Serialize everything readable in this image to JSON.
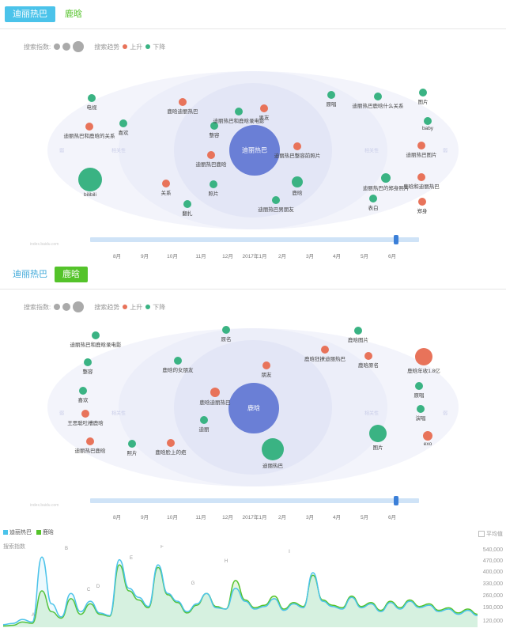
{
  "section1": {
    "tabs": [
      {
        "label": "迪丽热巴"
      },
      {
        "label": "鹿晗"
      }
    ],
    "legend": {
      "search_index": "搜索指数:",
      "trend": "搜索趋势",
      "up": "上升",
      "down": "下降"
    },
    "center": "迪丽热巴",
    "bubbles": [
      {
        "label": "电视",
        "color": "green"
      },
      {
        "label": "迪丽热巴和鹿晗的关系",
        "color": "red"
      },
      {
        "label": "喜欢",
        "color": "green"
      },
      {
        "label": "bilibili",
        "color": "green"
      },
      {
        "label": "关系",
        "color": "red"
      },
      {
        "label": "鹿晗迪丽热巴",
        "color": "red"
      },
      {
        "label": "整容",
        "color": "green"
      },
      {
        "label": "迪丽热巴鹿晗",
        "color": "red"
      },
      {
        "label": "照片",
        "color": "green"
      },
      {
        "label": "翻扎",
        "color": "green"
      },
      {
        "label": "迪丽热巴和鹿晗录电影",
        "color": "green"
      },
      {
        "label": "男友",
        "color": "red"
      },
      {
        "label": "迪丽热巴整容前照片",
        "color": "red"
      },
      {
        "label": "鹿晗",
        "color": "green"
      },
      {
        "label": "迪丽热巴男朋友",
        "color": "green"
      },
      {
        "label": "原唱",
        "color": "green"
      },
      {
        "label": "迪丽热巴鹿晗什么关系",
        "color": "green"
      },
      {
        "label": "图片",
        "color": "green"
      },
      {
        "label": "迪丽热巴的郑身照片",
        "color": "green"
      },
      {
        "label": "表白",
        "color": "green"
      },
      {
        "label": "baby",
        "color": "green"
      },
      {
        "label": "迪丽热巴图片",
        "color": "red"
      },
      {
        "label": "鹿晗和迪丽热巴",
        "color": "red"
      },
      {
        "label": "郑身",
        "color": "red"
      }
    ],
    "faint_labels": [
      "弱",
      "相关性",
      "相关性",
      "弱"
    ],
    "timeline": [
      "8月",
      "9月",
      "10月",
      "11月",
      "12月",
      "2017年1月",
      "2月",
      "3月",
      "4月",
      "5月",
      "6月"
    ],
    "credit": "index.baidu.com"
  },
  "section2": {
    "tabs": [
      {
        "label": "迪丽热巴"
      },
      {
        "label": "鹿晗"
      }
    ],
    "legend": {
      "search_index": "搜索指数:",
      "trend": "搜索趋势",
      "up": "上升",
      "down": "下降"
    },
    "center": "鹿晗",
    "bubbles": [
      {
        "label": "迪丽热巴和鹿晗录电影",
        "color": "green"
      },
      {
        "label": "整容",
        "color": "green"
      },
      {
        "label": "喜欢",
        "color": "green"
      },
      {
        "label": "王思聪吐槽鹿晗",
        "color": "red"
      },
      {
        "label": "迪丽热巴鹿晗",
        "color": "red"
      },
      {
        "label": "照片",
        "color": "green"
      },
      {
        "label": "鹿晗脸上的疤",
        "color": "red"
      },
      {
        "label": "鹿晗的女朋友",
        "color": "green"
      },
      {
        "label": "原名",
        "color": "green"
      },
      {
        "label": "鹿晗迪丽热巴",
        "color": "red"
      },
      {
        "label": "迪丽",
        "color": "green"
      },
      {
        "label": "朋友",
        "color": "red"
      },
      {
        "label": "迪丽热巴",
        "color": "green"
      },
      {
        "label": "鹿晗图片",
        "color": "green"
      },
      {
        "label": "鹿晗狂撩迪丽热巴",
        "color": "red"
      },
      {
        "label": "鹿晗原名",
        "color": "red"
      },
      {
        "label": "图片",
        "color": "green"
      },
      {
        "label": "鹿晗年收1.8亿",
        "color": "red"
      },
      {
        "label": "原唱",
        "color": "green"
      },
      {
        "label": "演唱",
        "color": "green"
      },
      {
        "label": "exo",
        "color": "red"
      }
    ],
    "faint_labels": [
      "弱",
      "相关性",
      "相关性",
      "弱"
    ],
    "timeline": [
      "8月",
      "9月",
      "10月",
      "11月",
      "12月",
      "2017年1月",
      "2月",
      "3月",
      "4月",
      "5月",
      "6月"
    ],
    "credit": "index.baidu.com"
  },
  "chart_data": {
    "type": "area",
    "series": [
      {
        "name": "迪丽热巴",
        "color": "#4bc3ea",
        "values": [
          20,
          30,
          60,
          40,
          540,
          180,
          80,
          260,
          120,
          200,
          110,
          90,
          520,
          300,
          230,
          160,
          480,
          260,
          200,
          120,
          180,
          260,
          150,
          140,
          300,
          200,
          140,
          160,
          220,
          130,
          180,
          150,
          420,
          200,
          160,
          140,
          230,
          150,
          180,
          120,
          190,
          140,
          200,
          150,
          170,
          120,
          140,
          100,
          130,
          90
        ]
      },
      {
        "name": "鹿晗",
        "color": "#54c32a",
        "values": [
          10,
          15,
          40,
          30,
          280,
          120,
          70,
          220,
          100,
          180,
          100,
          85,
          480,
          280,
          210,
          150,
          460,
          250,
          190,
          110,
          170,
          260,
          160,
          140,
          360,
          210,
          150,
          170,
          240,
          140,
          190,
          160,
          400,
          210,
          170,
          150,
          240,
          160,
          190,
          130,
          200,
          150,
          210,
          160,
          180,
          130,
          150,
          110,
          140,
          100
        ]
      }
    ],
    "ylabel": "搜索指数",
    "yticks": [
      "540,000",
      "470,000",
      "400,000",
      "330,000",
      "260,000",
      "190,000",
      "120,000"
    ],
    "annotations": [
      "A",
      "B",
      "C",
      "D",
      "E",
      "F",
      "G",
      "H",
      "I"
    ],
    "avg_label": "平均值"
  }
}
